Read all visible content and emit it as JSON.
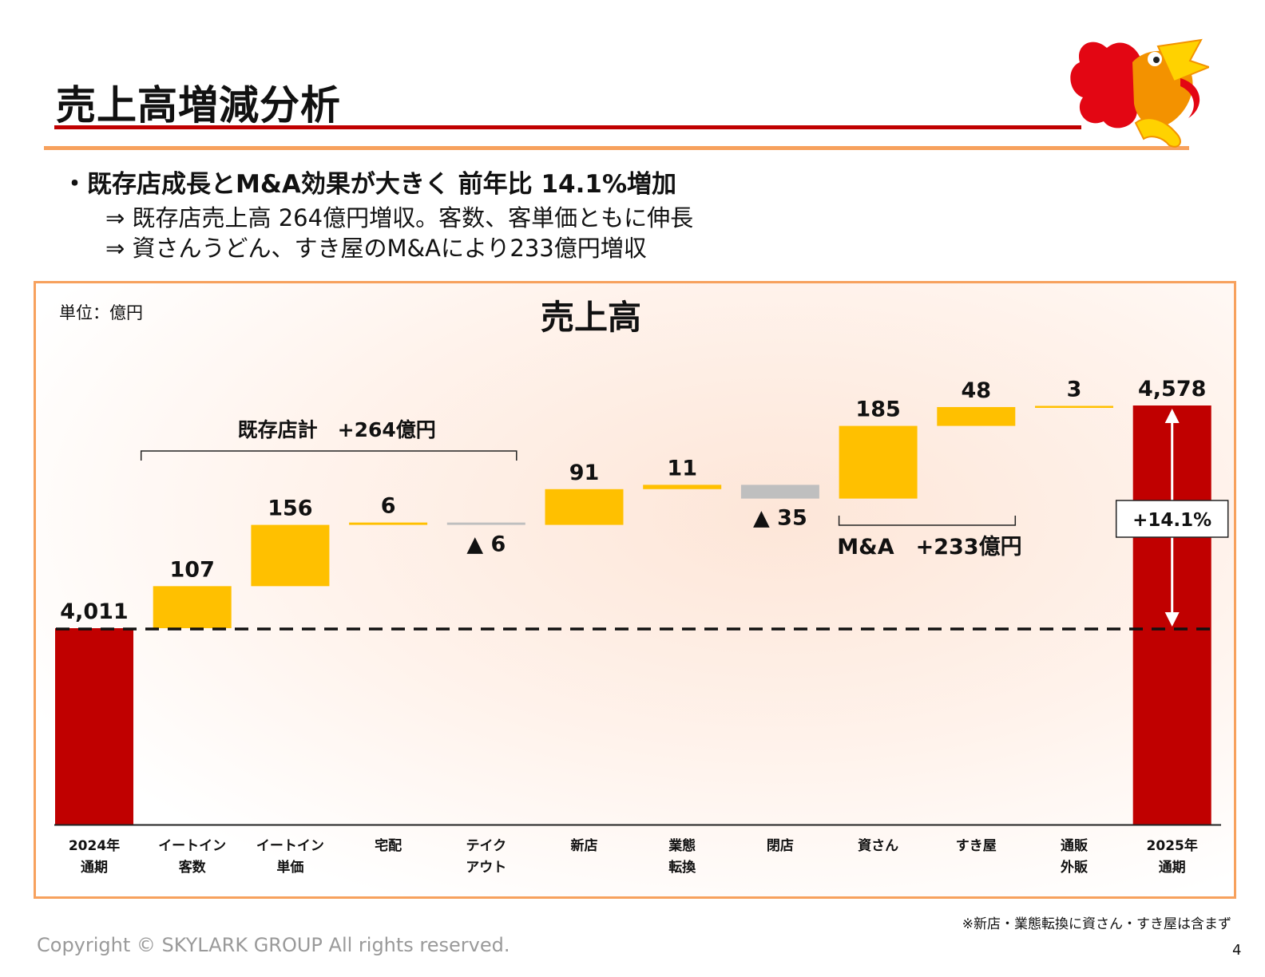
{
  "header": {
    "title": "売上高増減分析"
  },
  "bullets": {
    "main": "・既存店成長とM&A効果が大きく 前年比 14.1%増加",
    "sub1": "⇒ 既存店売上高 264億円増収。客数、客単価ともに伸長",
    "sub2": "⇒ 資さんうどん、すき屋のM&Aにより233億円増収"
  },
  "chart_data": {
    "type": "waterfall",
    "title": "売上高",
    "unit_label": "単位：億円",
    "categories": [
      [
        "2024年",
        "通期"
      ],
      [
        "イートイン",
        "客数"
      ],
      [
        "イートイン",
        "単価"
      ],
      [
        "宅配"
      ],
      [
        "テイク",
        "アウト"
      ],
      [
        "新店"
      ],
      [
        "業態",
        "転換"
      ],
      [
        "閉店"
      ],
      [
        "資さん"
      ],
      [
        "すき屋"
      ],
      [
        "通販",
        "外販"
      ],
      [
        "2025年",
        "通期"
      ]
    ],
    "values": [
      4011,
      107,
      156,
      6,
      -6,
      91,
      11,
      -35,
      185,
      48,
      3,
      4578
    ],
    "value_labels": [
      "4,011",
      "107",
      "156",
      "6",
      "▲ 6",
      "91",
      "11",
      "▲ 35",
      "185",
      "48",
      "3",
      "4,578"
    ],
    "kinds": [
      "total",
      "inc",
      "inc",
      "inc",
      "dec",
      "inc",
      "inc",
      "dec",
      "inc",
      "inc",
      "inc",
      "total"
    ],
    "colors": {
      "total": "#c00000",
      "inc": "#ffc000",
      "dec": "#bfbfbf"
    },
    "groups": [
      {
        "label": "既存店計　+264億円",
        "from": 1,
        "to": 4,
        "position": "above"
      },
      {
        "label": "M&A　+233億円",
        "from": 8,
        "to": 9,
        "position": "below"
      }
    ],
    "growth_label": "+14.1%",
    "baseline_reference": 4011,
    "grid": false,
    "legend": "none"
  },
  "footnote": "※新店・業態転換に資さん・すき屋は含まず",
  "copyright": "Copyright © SKYLARK GROUP All rights reserved.",
  "page_number": "4"
}
